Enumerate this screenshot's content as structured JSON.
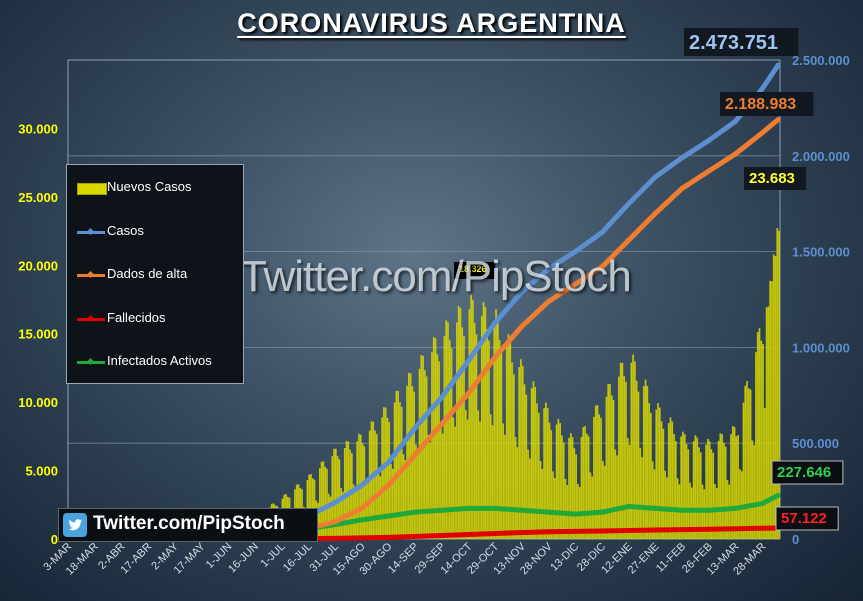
{
  "title": "CORONAVIRUS ARGENTINA",
  "watermark": "Twitter.com/PipStoch",
  "twitter_handle": "Twitter.com/PipStoch",
  "colors": {
    "nuevos": "#d8d800",
    "casos": "#5b8fcf",
    "alta": "#ed7d31",
    "fallecidos": "#e00000",
    "activos": "#21a83a",
    "left_axis": "#ffff00",
    "right_axis": "#5b8fcf"
  },
  "legend": [
    {
      "key": "nuevos",
      "label": "Nuevos Casos",
      "kind": "bar"
    },
    {
      "key": "casos",
      "label": "Casos",
      "kind": "line"
    },
    {
      "key": "alta",
      "label": "Dados de alta",
      "kind": "line"
    },
    {
      "key": "fallecidos",
      "label": "Fallecidos",
      "kind": "line"
    },
    {
      "key": "activos",
      "label": "Infectados Activos",
      "kind": "line"
    }
  ],
  "annotations": {
    "casos": "2.473.751",
    "alta": "2.188.983",
    "nuevos": "23.683",
    "activos": "227.646",
    "fallecidos": "57.122",
    "peak": "18.326"
  },
  "chart_data": {
    "type": "bar+line",
    "title": "CORONAVIRUS ARGENTINA",
    "x_ticks": [
      "3-MAR",
      "18-MAR",
      "2-ABR",
      "17-ABR",
      "2-MAY",
      "17-MAY",
      "1-JUN",
      "16-JUN",
      "1-JUL",
      "16-JUL",
      "31-JUL",
      "15-AGO",
      "30-AGO",
      "14-SEP",
      "29-SEP",
      "14-OCT",
      "29-OCT",
      "13-NOV",
      "28-NOV",
      "13-DIC",
      "28-DIC",
      "12-ENE",
      "27-ENE",
      "11-FEB",
      "26-FEB",
      "13-MAR",
      "28-MAR"
    ],
    "y_left": {
      "ticks": [
        "0",
        "5.000",
        "10.000",
        "15.000",
        "20.000",
        "25.000",
        "30.000"
      ],
      "ylim": [
        0,
        35000
      ]
    },
    "y_right": {
      "ticks": [
        "0",
        "500.000",
        "1.000.000",
        "1.500.000",
        "2.000.000",
        "2.500.000"
      ],
      "ylim": [
        0,
        2500000
      ]
    },
    "legend_position": "left",
    "series": [
      {
        "name": "Nuevos Casos",
        "axis": "left",
        "type": "bar",
        "x": [
          "1-JUN",
          "16-JUN",
          "1-JUL",
          "16-JUL",
          "31-JUL",
          "15-AGO",
          "30-AGO",
          "14-SEP",
          "29-SEP",
          "14-OCT",
          "29-OCT",
          "13-NOV",
          "28-NOV",
          "13-DIC",
          "28-DIC",
          "12-ENE",
          "27-ENE",
          "11-FEB",
          "26-FEB",
          "13-MAR",
          "28-MAR",
          "6-ABR"
        ],
        "values": [
          800,
          1500,
          2800,
          4200,
          6000,
          7000,
          9000,
          11500,
          14000,
          16000,
          15000,
          11500,
          8500,
          6500,
          9500,
          12500,
          9000,
          7000,
          6500,
          7500,
          15000,
          23683
        ]
      },
      {
        "name": "Casos",
        "axis": "right",
        "type": "line",
        "x": [
          "1-JUN",
          "16-JUN",
          "1-JUL",
          "16-JUL",
          "31-JUL",
          "15-AGO",
          "30-AGO",
          "14-SEP",
          "29-SEP",
          "14-OCT",
          "29-OCT",
          "13-NOV",
          "28-NOV",
          "13-DIC",
          "28-DIC",
          "12-ENE",
          "27-ENE",
          "11-FEB",
          "26-FEB",
          "13-MAR",
          "28-MAR",
          "6-ABR"
        ],
        "values": [
          17000,
          35000,
          70000,
          120000,
          190000,
          280000,
          400000,
          580000,
          740000,
          930000,
          1130000,
          1290000,
          1410000,
          1500000,
          1600000,
          1750000,
          1890000,
          1990000,
          2080000,
          2180000,
          2350000,
          2473751
        ]
      },
      {
        "name": "Dados de alta",
        "axis": "right",
        "type": "line",
        "x": [
          "1-JUN",
          "16-JUN",
          "1-JUL",
          "16-JUL",
          "31-JUL",
          "15-AGO",
          "30-AGO",
          "14-SEP",
          "29-SEP",
          "14-OCT",
          "29-OCT",
          "13-NOV",
          "28-NOV",
          "13-DIC",
          "28-DIC",
          "12-ENE",
          "27-ENE",
          "11-FEB",
          "26-FEB",
          "13-MAR",
          "28-MAR",
          "6-ABR"
        ],
        "values": [
          5000,
          12000,
          30000,
          55000,
          90000,
          160000,
          280000,
          440000,
          600000,
          760000,
          950000,
          1110000,
          1240000,
          1330000,
          1420000,
          1560000,
          1700000,
          1830000,
          1920000,
          2010000,
          2120000,
          2188983
        ]
      },
      {
        "name": "Fallecidos",
        "axis": "right",
        "type": "line",
        "x": [
          "3-MAR",
          "1-JUN",
          "1-JUL",
          "31-JUL",
          "30-AGO",
          "29-SEP",
          "29-OCT",
          "28-NOV",
          "28-DIC",
          "27-ENE",
          "26-FEB",
          "28-MAR",
          "6-ABR"
        ],
        "values": [
          0,
          600,
          1700,
          3500,
          8500,
          18000,
          29000,
          38000,
          42000,
          47000,
          51000,
          56000,
          57122
        ]
      },
      {
        "name": "Infectados Activos",
        "axis": "right",
        "type": "line",
        "x": [
          "3-MAR",
          "1-JUN",
          "1-JUL",
          "16-JUL",
          "31-JUL",
          "15-AGO",
          "30-AGO",
          "14-SEP",
          "29-SEP",
          "14-OCT",
          "29-OCT",
          "13-NOV",
          "28-NOV",
          "13-DIC",
          "28-DIC",
          "12-ENE",
          "27-ENE",
          "11-FEB",
          "26-FEB",
          "13-MAR",
          "28-MAR",
          "6-ABR"
        ],
        "values": [
          0,
          12000,
          38000,
          55000,
          75000,
          100000,
          120000,
          140000,
          150000,
          160000,
          160000,
          150000,
          140000,
          130000,
          140000,
          170000,
          160000,
          150000,
          150000,
          160000,
          185000,
          227646
        ]
      }
    ]
  }
}
